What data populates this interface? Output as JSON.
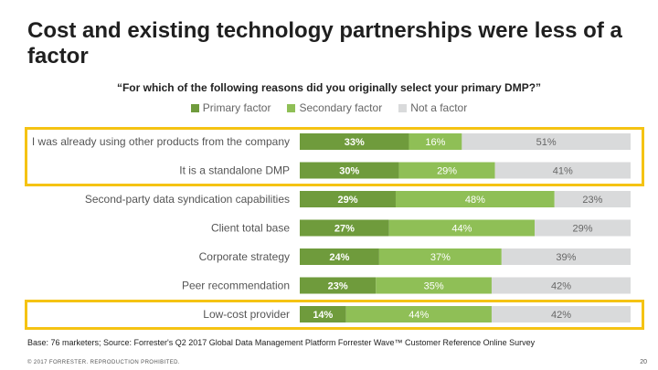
{
  "title": "Cost and existing technology partnerships were less of a factor",
  "question": "“For which of the following reasons did you originally select your primary DMP?”",
  "legend": [
    {
      "label": "Primary factor",
      "color": "#6f9b3c"
    },
    {
      "label": "Secondary factor",
      "color": "#8fbf56"
    },
    {
      "label": "Not a factor",
      "color": "#d9dadb"
    }
  ],
  "chart_data": {
    "type": "bar",
    "orientation": "horizontal",
    "stacked": true,
    "categories": [
      "I was already using other products from the company",
      "It is a standalone DMP",
      "Second-party data syndication capabilities",
      "Client total base",
      "Corporate strategy",
      "Peer recommendation",
      "Low-cost provider"
    ],
    "series": [
      {
        "name": "Primary factor",
        "values": [
          33,
          30,
          29,
          27,
          24,
          23,
          14
        ]
      },
      {
        "name": "Secondary factor",
        "values": [
          16,
          29,
          48,
          44,
          37,
          35,
          44
        ]
      },
      {
        "name": "Not a factor",
        "values": [
          51,
          41,
          23,
          29,
          39,
          42,
          42
        ]
      }
    ],
    "value_suffix": "%",
    "highlighted_rows": [
      [
        0,
        1
      ],
      [
        6,
        6
      ]
    ],
    "title": "“For which of the following reasons did you originally select your primary DMP?”",
    "xlim": [
      0,
      100
    ]
  },
  "footnote": "Base: 76 marketers; Source: Forrester's Q2 2017 Global Data Management Platform Forrester Wave™ Customer Reference Online Survey",
  "copyright": "© 2017 FORRESTER. REPRODUCTION PROHIBITED.",
  "page_number": "20"
}
